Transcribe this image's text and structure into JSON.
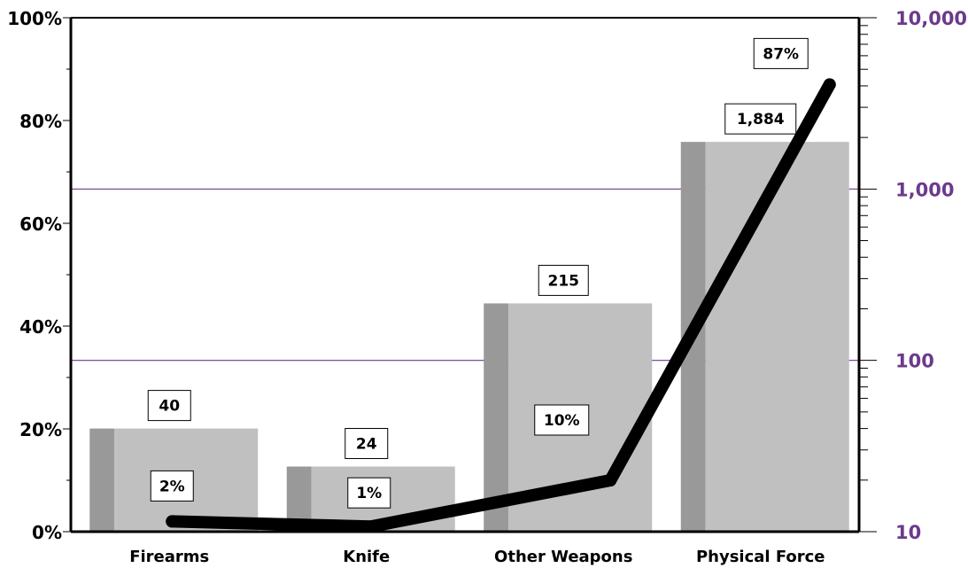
{
  "chart_data": {
    "type": "bar",
    "categories": [
      "Firearms",
      "Knife",
      "Other Weapons",
      "Physical Force"
    ],
    "bar_series": {
      "values": [
        40,
        24,
        215,
        1884
      ],
      "labels": [
        "40",
        "24",
        "215",
        "1,884"
      ],
      "axis": "right"
    },
    "line_series": {
      "values": [
        2,
        1,
        10,
        87
      ],
      "labels": [
        "2%",
        "1%",
        "10%",
        "87%"
      ],
      "axis": "left"
    },
    "left_axis": {
      "ylim": [
        0,
        100
      ],
      "ticks": [
        0,
        20,
        40,
        60,
        80,
        100
      ],
      "tick_labels": [
        "0%",
        "20%",
        "40%",
        "60%",
        "80%",
        "100%"
      ]
    },
    "right_axis": {
      "scale": "log",
      "ylim": [
        10,
        10000
      ],
      "ticks": [
        10,
        100,
        1000,
        10000
      ],
      "tick_labels": [
        "10",
        "100",
        "1,000",
        "10,000"
      ],
      "color": "#6b3a8c"
    },
    "grid": "horizontal at right-axis major ticks",
    "colors": {
      "bar_front": "#c0c0c0",
      "bar_side": "#999999",
      "line": "#000000",
      "grid": "#6b3a8c"
    }
  }
}
